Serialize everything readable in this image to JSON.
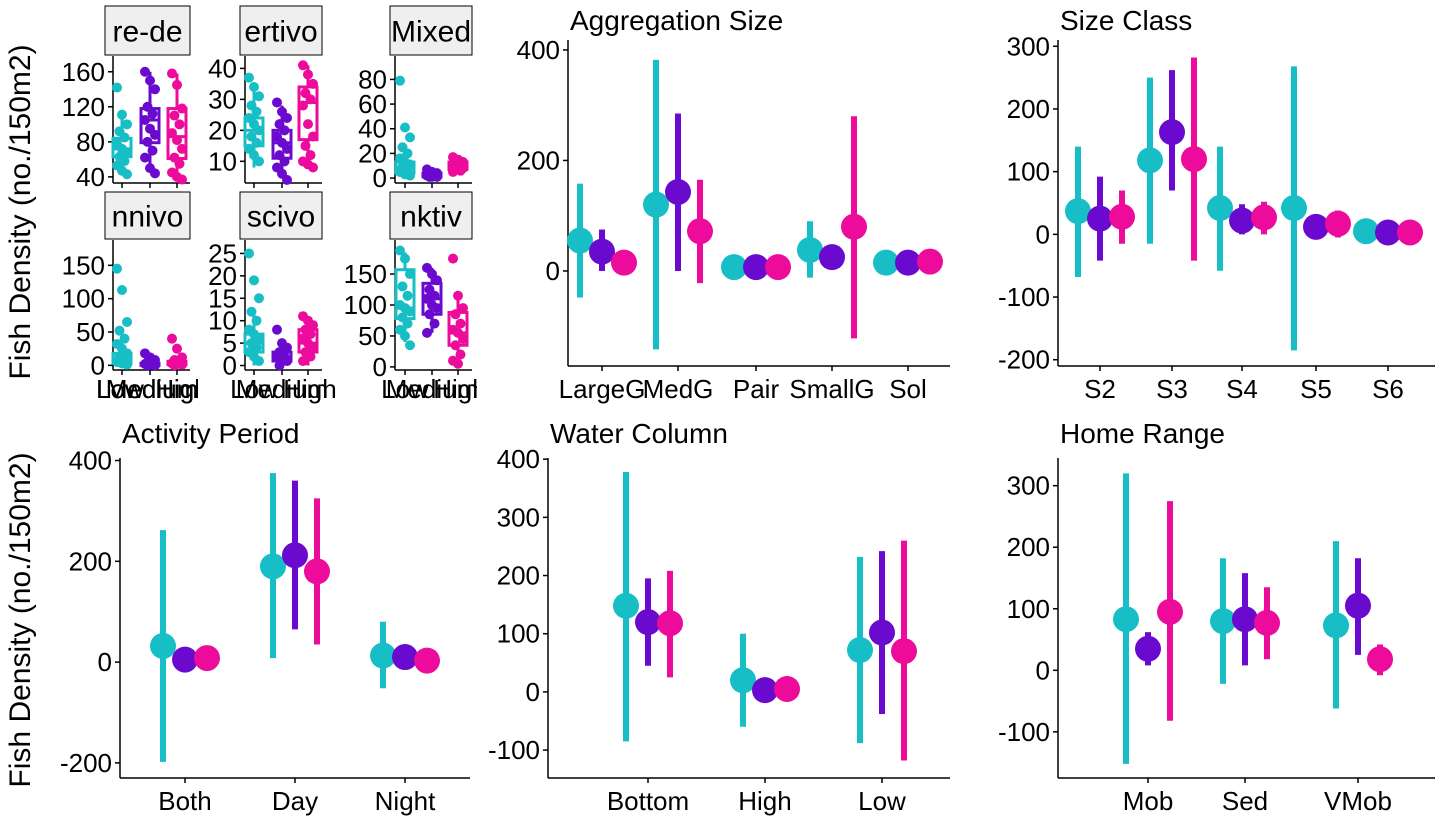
{
  "y_axis_label": "Fish Density (no./150m2)",
  "colors": {
    "Low": "#17BEC5",
    "Medium": "#6A0ACF",
    "High": "#EC0B9B"
  },
  "chart_data": [
    {
      "type": "box",
      "strip": "re-de",
      "categories": [
        "Low",
        "Medium",
        "High"
      ],
      "tick_labels": [
        "Low",
        "Medium",
        "High"
      ],
      "ylim": [
        33,
        178
      ],
      "yticks": [
        40,
        80,
        120,
        160
      ],
      "boxes": [
        {
          "group": "Low",
          "whisker_low": 45,
          "q1": 63,
          "median": 72,
          "q3": 84,
          "whisker_high": 112
        },
        {
          "group": "Medium",
          "whisker_low": 45,
          "q1": 79,
          "median": 105,
          "q3": 118,
          "whisker_high": 160
        },
        {
          "group": "High",
          "whisker_low": 40,
          "q1": 61,
          "median": 86,
          "q3": 118,
          "whisker_high": 158
        }
      ],
      "points": [
        {
          "group": "Low",
          "values": [
            142,
            111,
            100,
            92,
            85,
            78,
            72,
            67,
            63,
            58,
            53,
            47,
            43
          ]
        },
        {
          "group": "Medium",
          "values": [
            160,
            150,
            140,
            120,
            112,
            105,
            95,
            88,
            80,
            70,
            62,
            50,
            44
          ]
        },
        {
          "group": "High",
          "values": [
            158,
            145,
            118,
            110,
            100,
            90,
            82,
            72,
            62,
            55,
            45,
            40,
            37
          ]
        }
      ]
    },
    {
      "type": "box",
      "strip": "ertivo",
      "categories": [
        "Low",
        "Medium",
        "High"
      ],
      "tick_labels": [
        "",
        "",
        ""
      ],
      "ylim": [
        3,
        44
      ],
      "yticks": [
        10,
        20,
        30,
        40
      ],
      "boxes": [
        {
          "group": "Low",
          "whisker_low": 8,
          "q1": 15,
          "median": 20,
          "q3": 24,
          "whisker_high": 35
        },
        {
          "group": "Medium",
          "whisker_low": 5,
          "q1": 11,
          "median": 16,
          "q3": 20,
          "whisker_high": 28
        },
        {
          "group": "High",
          "whisker_low": 10,
          "q1": 17,
          "median": 29,
          "q3": 34,
          "whisker_high": 41
        }
      ],
      "points": [
        {
          "group": "Low",
          "values": [
            37,
            34,
            31,
            28,
            26,
            24,
            22,
            20,
            18,
            16,
            14,
            12,
            10
          ]
        },
        {
          "group": "Medium",
          "values": [
            29,
            26,
            24,
            22,
            20,
            18,
            16,
            14,
            12,
            10,
            8,
            6,
            4
          ]
        },
        {
          "group": "High",
          "values": [
            41,
            38,
            35,
            32,
            30,
            28,
            22,
            18,
            15,
            12,
            10,
            9,
            8
          ]
        }
      ]
    },
    {
      "type": "box",
      "strip": "Mixed",
      "categories": [
        "Low",
        "Medium",
        "High"
      ],
      "tick_labels": [
        "",
        "",
        ""
      ],
      "ylim": [
        -4,
        99
      ],
      "yticks": [
        0,
        20,
        40,
        60,
        80
      ],
      "boxes": [
        {
          "group": "Low",
          "whisker_low": 1,
          "q1": 4,
          "median": 8,
          "q3": 13,
          "whisker_high": 25
        },
        {
          "group": "Medium",
          "whisker_low": 1,
          "q1": 1,
          "median": 2,
          "q3": 4,
          "whisker_high": 7
        },
        {
          "group": "High",
          "whisker_low": 4,
          "q1": 7,
          "median": 10,
          "q3": 13,
          "whisker_high": 17
        }
      ],
      "points": [
        {
          "group": "Low",
          "values": [
            79,
            41,
            33,
            25,
            20,
            16,
            13,
            11,
            9,
            7,
            5,
            3,
            2
          ]
        },
        {
          "group": "Medium",
          "values": [
            7,
            5,
            4,
            3,
            2,
            2,
            1,
            1,
            1
          ]
        },
        {
          "group": "High",
          "values": [
            17,
            15,
            13,
            12,
            11,
            10,
            9,
            8,
            7,
            6,
            5
          ]
        }
      ]
    },
    {
      "type": "box",
      "strip": "nnivo",
      "categories": [
        "Low",
        "Medium",
        "High"
      ],
      "tick_labels": [
        "Low",
        "Medium",
        "High"
      ],
      "ylim": [
        -7,
        188
      ],
      "yticks": [
        0,
        50,
        100,
        150
      ],
      "boxes": [
        {
          "group": "Low",
          "whisker_low": 0,
          "q1": 3,
          "median": 8,
          "q3": 18,
          "whisker_high": 40
        },
        {
          "group": "Medium",
          "whisker_low": 0,
          "q1": 0,
          "median": 1,
          "q3": 3,
          "whisker_high": 7
        },
        {
          "group": "High",
          "whisker_low": 0,
          "q1": 1,
          "median": 3,
          "q3": 6,
          "whisker_high": 12
        }
      ],
      "points": [
        {
          "group": "Low",
          "values": [
            145,
            113,
            65,
            52,
            40,
            32,
            25,
            18,
            12,
            8,
            5,
            3,
            1
          ]
        },
        {
          "group": "Medium",
          "values": [
            18,
            12,
            8,
            5,
            3,
            2,
            1,
            0,
            0
          ]
        },
        {
          "group": "High",
          "values": [
            40,
            25,
            12,
            8,
            5,
            3,
            2,
            1,
            0
          ]
        }
      ]
    },
    {
      "type": "box",
      "strip": "scivo",
      "categories": [
        "Low",
        "Medium",
        "High"
      ],
      "tick_labels": [
        "Low",
        "Medium",
        "High"
      ],
      "ylim": [
        -1,
        28
      ],
      "yticks": [
        0,
        5,
        10,
        15,
        20,
        25
      ],
      "boxes": [
        {
          "group": "Low",
          "whisker_low": 0,
          "q1": 3,
          "median": 5,
          "q3": 7,
          "whisker_high": 12
        },
        {
          "group": "Medium",
          "whisker_low": 0,
          "q1": 1,
          "median": 1.5,
          "q3": 3,
          "whisker_high": 5
        },
        {
          "group": "High",
          "whisker_low": 0,
          "q1": 3,
          "median": 5,
          "q3": 8,
          "whisker_high": 11
        }
      ],
      "points": [
        {
          "group": "Low",
          "values": [
            25,
            19,
            15,
            12,
            10,
            8,
            7,
            6,
            5,
            4,
            3,
            2,
            1
          ]
        },
        {
          "group": "Medium",
          "values": [
            8,
            5,
            4,
            3,
            2,
            2,
            1,
            1,
            0
          ]
        },
        {
          "group": "High",
          "values": [
            11,
            10,
            9,
            8,
            7,
            6,
            5,
            4,
            3,
            2,
            1
          ]
        }
      ]
    },
    {
      "type": "box",
      "strip": "nktiv",
      "categories": [
        "Low",
        "Medium",
        "High"
      ],
      "tick_labels": [
        "Low",
        "Medium",
        "High"
      ],
      "ylim": [
        -5,
        205
      ],
      "yticks": [
        0,
        50,
        100,
        150
      ],
      "boxes": [
        {
          "group": "Low",
          "whisker_low": 40,
          "q1": 78,
          "median": 95,
          "q3": 157,
          "whisker_high": 185
        },
        {
          "group": "Medium",
          "whisker_low": 55,
          "q1": 85,
          "median": 110,
          "q3": 135,
          "whisker_high": 160
        },
        {
          "group": "High",
          "whisker_low": 15,
          "q1": 35,
          "median": 55,
          "q3": 88,
          "whisker_high": 115
        }
      ],
      "points": [
        {
          "group": "Low",
          "values": [
            188,
            175,
            150,
            130,
            115,
            100,
            95,
            90,
            80,
            70,
            60,
            50,
            35
          ]
        },
        {
          "group": "Medium",
          "values": [
            160,
            150,
            140,
            125,
            115,
            110,
            100,
            95,
            85,
            70,
            55
          ]
        },
        {
          "group": "High",
          "values": [
            175,
            115,
            95,
            85,
            70,
            60,
            55,
            45,
            35,
            20,
            10,
            5
          ]
        }
      ]
    },
    {
      "type": "pointrange",
      "title": "Aggregation Size",
      "categories": [
        "LargeG",
        "MedG",
        "Pair",
        "SmallG",
        "Sol"
      ],
      "tick_labels": [
        "LargeG",
        "MedG",
        "Pair",
        "SmallG",
        "Sol"
      ],
      "ylim": [
        -172,
        418
      ],
      "yticks": [
        0,
        200,
        400
      ],
      "series": [
        {
          "name": "Low",
          "mean": [
            55,
            120,
            7,
            38,
            15
          ],
          "low": [
            -48,
            -142,
            7,
            -12,
            15
          ],
          "high": [
            158,
            382,
            7,
            90,
            15
          ]
        },
        {
          "name": "Medium",
          "mean": [
            35,
            143,
            7,
            25,
            15
          ],
          "low": [
            0,
            0,
            7,
            25,
            15
          ],
          "high": [
            75,
            285,
            7,
            25,
            15
          ]
        },
        {
          "name": "High",
          "mean": [
            15,
            72,
            7,
            80,
            17
          ],
          "low": [
            15,
            -22,
            7,
            -122,
            17
          ],
          "high": [
            15,
            165,
            7,
            280,
            17
          ]
        }
      ]
    },
    {
      "type": "pointrange",
      "title": "Size Class",
      "categories": [
        "S2",
        "S3",
        "S4",
        "S5",
        "S6"
      ],
      "tick_labels": [
        "S2",
        "S3",
        "S4",
        "S5",
        "S6"
      ],
      "ylim": [
        -210,
        310
      ],
      "yticks": [
        -200,
        -100,
        0,
        100,
        200,
        300
      ],
      "series": [
        {
          "name": "Low",
          "mean": [
            37,
            118,
            42,
            42,
            5
          ],
          "low": [
            -68,
            -15,
            -58,
            -185,
            5
          ],
          "high": [
            140,
            250,
            140,
            268,
            5
          ]
        },
        {
          "name": "Medium",
          "mean": [
            25,
            163,
            22,
            12,
            3
          ],
          "low": [
            -42,
            70,
            0,
            12,
            3
          ],
          "high": [
            92,
            262,
            48,
            12,
            3
          ]
        },
        {
          "name": "High",
          "mean": [
            28,
            120,
            27,
            17,
            3
          ],
          "low": [
            -15,
            -42,
            0,
            -5,
            3
          ],
          "high": [
            70,
            282,
            52,
            38,
            3
          ]
        }
      ]
    },
    {
      "type": "pointrange",
      "title": "Activity Period",
      "categories": [
        "Both",
        "Day",
        "Night"
      ],
      "tick_labels": [
        "Both",
        "Day",
        "Night"
      ],
      "ylim": [
        -230,
        405
      ],
      "yticks": [
        -200,
        0,
        200,
        400
      ],
      "series": [
        {
          "name": "Low",
          "mean": [
            32,
            190,
            13
          ],
          "low": [
            -198,
            8,
            -52
          ],
          "high": [
            262,
            375,
            80
          ]
        },
        {
          "name": "Medium",
          "mean": [
            5,
            212,
            10
          ],
          "low": [
            5,
            65,
            10
          ],
          "high": [
            5,
            360,
            10
          ]
        },
        {
          "name": "High",
          "mean": [
            8,
            180,
            3
          ],
          "low": [
            8,
            35,
            3
          ],
          "high": [
            8,
            325,
            3
          ]
        }
      ]
    },
    {
      "type": "pointrange",
      "title": "Water Column",
      "categories": [
        "Bottom",
        "High",
        "Low"
      ],
      "tick_labels": [
        "Bottom",
        "High",
        "Low"
      ],
      "ylim": [
        -148,
        402
      ],
      "yticks": [
        -100,
        0,
        100,
        200,
        300,
        400
      ],
      "series": [
        {
          "name": "Low",
          "mean": [
            148,
            20,
            72
          ],
          "low": [
            -85,
            -60,
            -88
          ],
          "high": [
            378,
            100,
            232
          ]
        },
        {
          "name": "Medium",
          "mean": [
            120,
            3,
            102
          ],
          "low": [
            45,
            3,
            -38
          ],
          "high": [
            195,
            3,
            242
          ]
        },
        {
          "name": "High",
          "mean": [
            118,
            5,
            70
          ],
          "low": [
            25,
            5,
            -118
          ],
          "high": [
            208,
            5,
            260
          ]
        }
      ]
    },
    {
      "type": "pointrange",
      "title": "Home Range",
      "categories": [
        "Mob",
        "Sed",
        "VMob"
      ],
      "tick_labels": [
        "Mob",
        "Sed",
        "VMob"
      ],
      "ylim": [
        -175,
        345
      ],
      "yticks": [
        -100,
        0,
        100,
        200,
        300
      ],
      "series": [
        {
          "name": "Low",
          "mean": [
            83,
            80,
            73
          ],
          "low": [
            -152,
            -22,
            -62
          ],
          "high": [
            320,
            182,
            210
          ]
        },
        {
          "name": "Medium",
          "mean": [
            35,
            83,
            105
          ],
          "low": [
            8,
            8,
            25
          ],
          "high": [
            62,
            158,
            182
          ]
        },
        {
          "name": "High",
          "mean": [
            95,
            77,
            18
          ],
          "low": [
            -82,
            18,
            -8
          ],
          "high": [
            275,
            135,
            42
          ]
        }
      ]
    }
  ]
}
